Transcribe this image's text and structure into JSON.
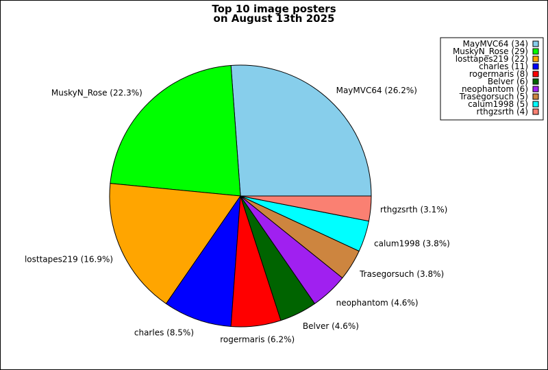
{
  "chart_data": {
    "type": "pie",
    "title_lines": [
      "Top 10 image posters",
      "on August 13th 2025"
    ],
    "legend_position": "top-right",
    "slices": [
      {
        "name": "MayMVC64",
        "value": 34,
        "percent_label": "26.2%",
        "color": "#87ceeb"
      },
      {
        "name": "MuskyN_Rose",
        "value": 29,
        "percent_label": "22.3%",
        "color": "#00ff00"
      },
      {
        "name": "losttapes219",
        "value": 22,
        "percent_label": "16.9%",
        "color": "#ffa500"
      },
      {
        "name": "charles",
        "value": 11,
        "percent_label": "8.5%",
        "color": "#0000ff"
      },
      {
        "name": "rogermaris",
        "value": 8,
        "percent_label": "6.2%",
        "color": "#ff0000"
      },
      {
        "name": "Belver",
        "value": 6,
        "percent_label": "4.6%",
        "color": "#006400"
      },
      {
        "name": "neophantom",
        "value": 6,
        "percent_label": "4.6%",
        "color": "#a020f0"
      },
      {
        "name": "Trasegorsuch",
        "value": 5,
        "percent_label": "3.8%",
        "color": "#cd853f"
      },
      {
        "name": "calum1998",
        "value": 5,
        "percent_label": "3.8%",
        "color": "#00ffff"
      },
      {
        "name": "rthgzsrth",
        "value": 4,
        "percent_label": "3.1%",
        "color": "#fa8072"
      }
    ]
  }
}
